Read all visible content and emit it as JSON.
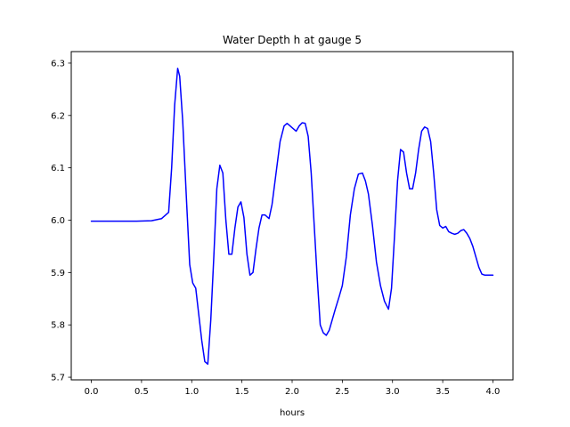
{
  "chart_data": {
    "type": "line",
    "title": "Water Depth h at gauge 5",
    "xlabel": "hours",
    "ylabel": "",
    "xlim": [
      -0.2,
      4.2
    ],
    "ylim": [
      5.695,
      6.322
    ],
    "x_ticks": [
      0.0,
      0.5,
      1.0,
      1.5,
      2.0,
      2.5,
      3.0,
      3.5,
      4.0
    ],
    "x_tick_labels": [
      "0.0",
      "0.5",
      "1.0",
      "1.5",
      "2.0",
      "2.5",
      "3.0",
      "3.5",
      "4.0"
    ],
    "y_ticks": [
      5.7,
      5.8,
      5.9,
      6.0,
      6.1,
      6.2,
      6.3
    ],
    "y_tick_labels": [
      "5.7",
      "5.8",
      "5.9",
      "6.0",
      "6.1",
      "6.2",
      "6.3"
    ],
    "grid": false,
    "series": [
      {
        "color": "#0000ff",
        "x": [
          0.0,
          0.2,
          0.45,
          0.6,
          0.7,
          0.77,
          0.8,
          0.83,
          0.86,
          0.88,
          0.91,
          0.95,
          0.98,
          1.01,
          1.04,
          1.07,
          1.1,
          1.13,
          1.16,
          1.19,
          1.22,
          1.25,
          1.28,
          1.31,
          1.34,
          1.37,
          1.4,
          1.43,
          1.46,
          1.49,
          1.52,
          1.55,
          1.58,
          1.61,
          1.64,
          1.67,
          1.7,
          1.73,
          1.77,
          1.8,
          1.84,
          1.88,
          1.92,
          1.95,
          1.98,
          2.01,
          2.04,
          2.07,
          2.1,
          2.13,
          2.16,
          2.19,
          2.22,
          2.25,
          2.28,
          2.31,
          2.34,
          2.37,
          2.4,
          2.43,
          2.47,
          2.5,
          2.54,
          2.58,
          2.62,
          2.66,
          2.7,
          2.73,
          2.76,
          2.8,
          2.84,
          2.88,
          2.92,
          2.96,
          2.99,
          3.02,
          3.05,
          3.08,
          3.11,
          3.14,
          3.17,
          3.2,
          3.23,
          3.26,
          3.29,
          3.32,
          3.35,
          3.38,
          3.41,
          3.44,
          3.47,
          3.5,
          3.53,
          3.56,
          3.59,
          3.62,
          3.65,
          3.68,
          3.71,
          3.74,
          3.77,
          3.8,
          3.83,
          3.86,
          3.89,
          3.92,
          3.95,
          3.98,
          4.0
        ],
        "y": [
          5.998,
          5.998,
          5.998,
          5.999,
          6.003,
          6.015,
          6.1,
          6.22,
          6.29,
          6.275,
          6.19,
          6.03,
          5.915,
          5.88,
          5.87,
          5.82,
          5.77,
          5.73,
          5.725,
          5.81,
          5.93,
          6.06,
          6.105,
          6.09,
          6.0,
          5.935,
          5.935,
          5.985,
          6.025,
          6.035,
          6.005,
          5.935,
          5.895,
          5.9,
          5.945,
          5.985,
          6.01,
          6.01,
          6.003,
          6.03,
          6.09,
          6.15,
          6.18,
          6.185,
          6.18,
          6.175,
          6.17,
          6.18,
          6.186,
          6.185,
          6.16,
          6.09,
          5.99,
          5.89,
          5.8,
          5.785,
          5.78,
          5.79,
          5.81,
          5.83,
          5.855,
          5.875,
          5.93,
          6.01,
          6.06,
          6.088,
          6.09,
          6.075,
          6.05,
          5.99,
          5.92,
          5.875,
          5.845,
          5.83,
          5.87,
          5.97,
          6.075,
          6.135,
          6.13,
          6.09,
          6.06,
          6.06,
          6.09,
          6.135,
          6.17,
          6.178,
          6.175,
          6.15,
          6.09,
          6.02,
          5.99,
          5.985,
          5.988,
          5.978,
          5.975,
          5.973,
          5.975,
          5.98,
          5.982,
          5.975,
          5.965,
          5.95,
          5.93,
          5.91,
          5.897,
          5.895,
          5.895,
          5.895,
          5.895
        ]
      }
    ]
  }
}
